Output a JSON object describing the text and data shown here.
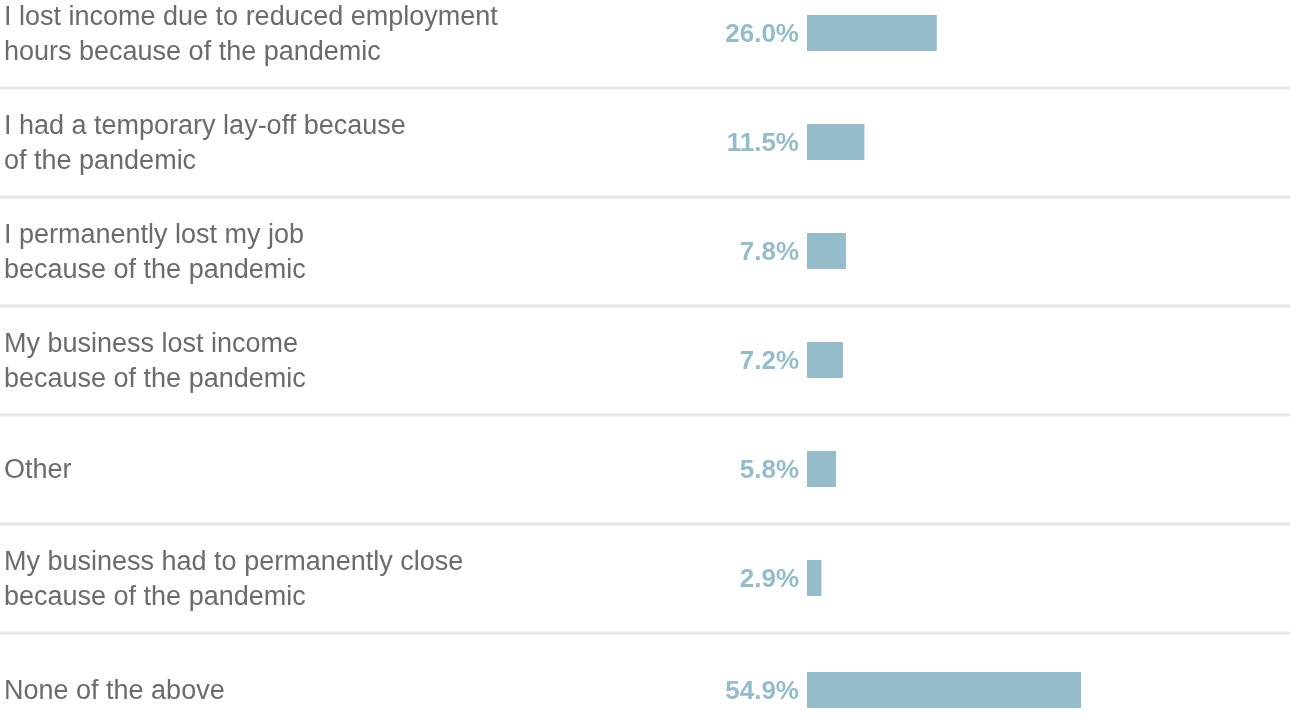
{
  "chart_data": {
    "type": "bar",
    "orientation": "horizontal",
    "categories": [
      "I lost income due to reduced employment\nhours because of the pandemic",
      "I had a temporary lay-off because\nof the pandemic",
      "I permanently lost my job\nbecause of the pandemic",
      "My business lost income\nbecause of the pandemic",
      "Other",
      "My business had to permanently close\nbecause of the pandemic",
      "None of the above"
    ],
    "values": [
      26.0,
      11.5,
      7.8,
      7.2,
      5.8,
      2.9,
      54.9
    ],
    "value_labels": [
      "26.0%",
      "11.5%",
      "7.8%",
      "7.2%",
      "5.8%",
      "2.9%",
      "54.9%"
    ],
    "color": "#94bccb"
  }
}
